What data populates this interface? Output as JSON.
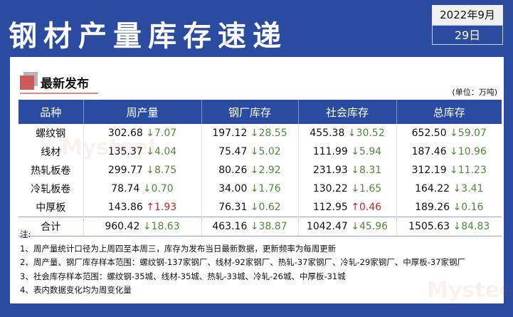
{
  "title": "钢材产量库存速递",
  "date": {
    "month": "2022年9月",
    "day": "29日"
  },
  "section": {
    "title": "最新发布",
    "unit": "(单位：万吨)"
  },
  "table": {
    "headers": [
      "品种",
      "周产量",
      "钢厂库存",
      "社会库存",
      "总库存"
    ],
    "rows": [
      {
        "name": "螺纹钢",
        "cells": [
          {
            "v": "302.68",
            "d": "7.07",
            "dir": "down"
          },
          {
            "v": "197.12",
            "d": "28.55",
            "dir": "down"
          },
          {
            "v": "455.38",
            "d": "30.52",
            "dir": "down"
          },
          {
            "v": "652.50",
            "d": "59.07",
            "dir": "down"
          }
        ]
      },
      {
        "name": "线材",
        "cells": [
          {
            "v": "135.37",
            "d": "4.04",
            "dir": "down"
          },
          {
            "v": "75.47",
            "d": "5.02",
            "dir": "down"
          },
          {
            "v": "111.99",
            "d": "5.94",
            "dir": "down"
          },
          {
            "v": "187.46",
            "d": "10.96",
            "dir": "down"
          }
        ]
      },
      {
        "name": "热轧板卷",
        "cells": [
          {
            "v": "299.77",
            "d": "8.75",
            "dir": "down"
          },
          {
            "v": "80.26",
            "d": "2.92",
            "dir": "down"
          },
          {
            "v": "231.93",
            "d": "8.31",
            "dir": "down"
          },
          {
            "v": "312.19",
            "d": "11.23",
            "dir": "down"
          }
        ]
      },
      {
        "name": "冷轧板卷",
        "cells": [
          {
            "v": "78.74",
            "d": "0.70",
            "dir": "down"
          },
          {
            "v": "34.00",
            "d": "1.76",
            "dir": "down"
          },
          {
            "v": "130.22",
            "d": "1.65",
            "dir": "down"
          },
          {
            "v": "164.22",
            "d": "3.41",
            "dir": "down"
          }
        ]
      },
      {
        "name": "中厚板",
        "cells": [
          {
            "v": "143.86",
            "d": "1.93",
            "dir": "up"
          },
          {
            "v": "76.31",
            "d": "0.62",
            "dir": "down"
          },
          {
            "v": "112.95",
            "d": "0.46",
            "dir": "up"
          },
          {
            "v": "189.26",
            "d": "0.16",
            "dir": "down"
          }
        ]
      },
      {
        "name": "合计",
        "cells": [
          {
            "v": "960.42",
            "d": "18.63",
            "dir": "down"
          },
          {
            "v": "463.16",
            "d": "38.87",
            "dir": "down"
          },
          {
            "v": "1042.47",
            "d": "45.96",
            "dir": "down"
          },
          {
            "v": "1505.63",
            "d": "84.83",
            "dir": "down"
          }
        ]
      }
    ]
  },
  "notes": [
    "注:",
    "1、周产量统计口径为上周四至本周三，库存为发布当日最新数据，更新频率为每周更新",
    "2、周产量、钢厂库存样本范围：螺纹钢-137家钢厂、线材-92家钢厂、热轧-37家钢厂、冷轧-29家钢厂、中厚板-37家钢厂",
    "3、社会库存样本范围：螺纹钢-35城、线材-35城、热轧-33城、冷轧-26城、中厚板-31城",
    "4、表内数据变化均为周变化量"
  ],
  "watermark": "我的钢铁 Mysteel.com",
  "colors": {
    "brand": "#2a4ba0",
    "down": "#4e8a3a",
    "up": "#d42020",
    "accent": "#cd5a5a"
  }
}
